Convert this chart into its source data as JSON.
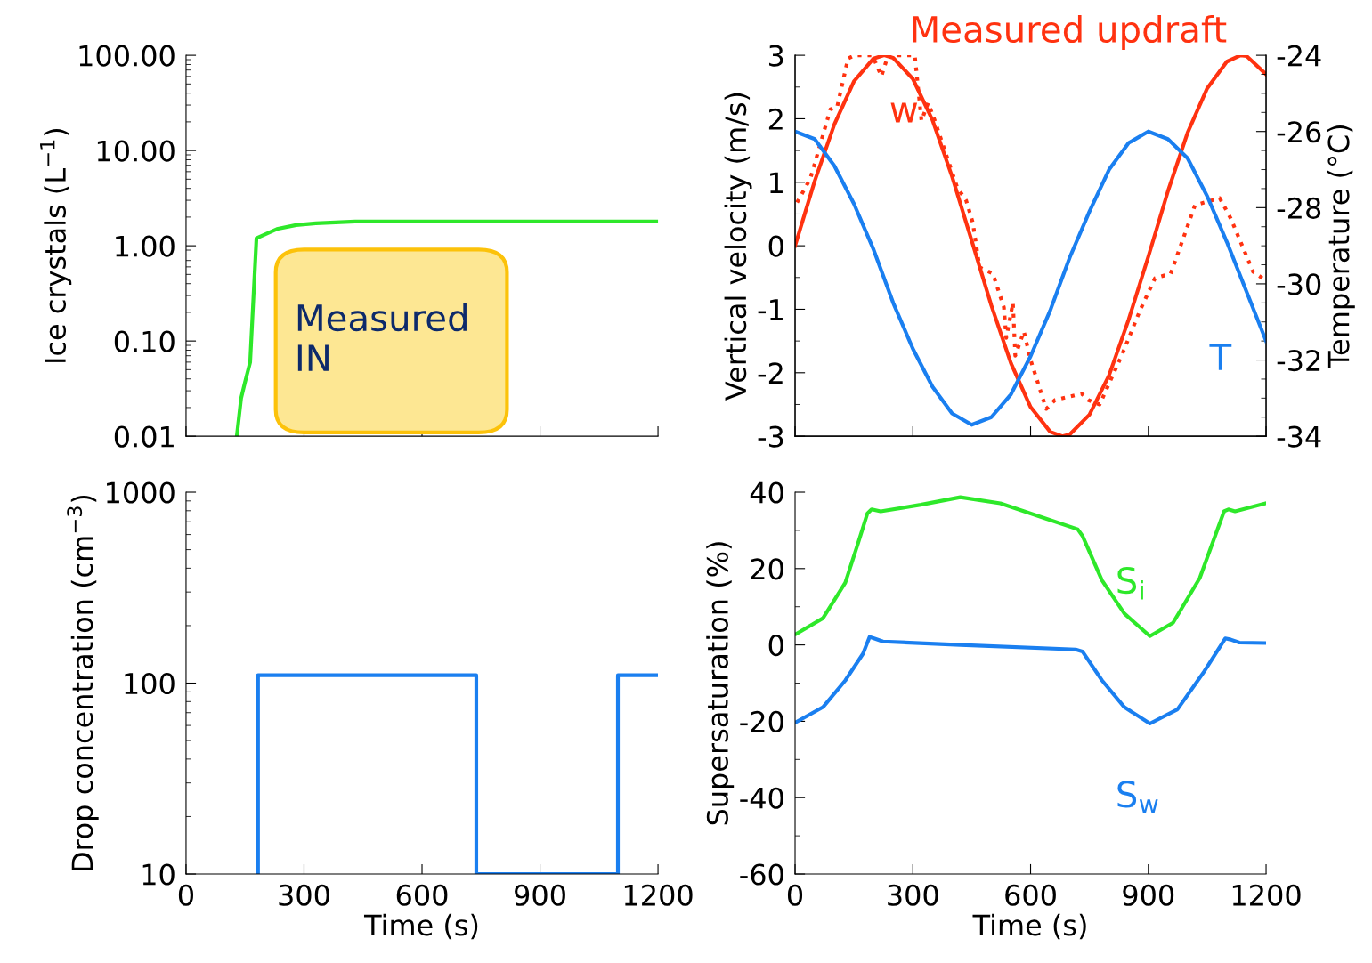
{
  "chart_data": [
    {
      "type": "line",
      "ylabel": "Ice crystals (L$^{−1}$)",
      "log": "y",
      "xlim": [
        0,
        1200
      ],
      "xticks": [
        0,
        300,
        600,
        900,
        1200
      ],
      "ylim": [
        0.01,
        100
      ],
      "yticks": [
        {
          "value": 0.01,
          "label": "0.01"
        },
        {
          "value": 0.1,
          "label": "0.10"
        },
        {
          "value": 1,
          "label": "1.00"
        },
        {
          "value": 10,
          "label": "10.00"
        },
        {
          "value": 100,
          "label": "100.00"
        }
      ],
      "tick_labels": "y",
      "annotations": [
        "Measured\nIN"
      ],
      "series": [
        {
          "color": "#2ee82a",
          "x": [
            129,
            140,
            150,
            163,
            179,
            231,
            280,
            330,
            430,
            1200
          ],
          "values": [
            0.01,
            0.025,
            0.037,
            0.06,
            1.2,
            1.5,
            1.65,
            1.72,
            1.8,
            1.8
          ]
        }
      ]
    },
    {
      "type": "line",
      "ylabel": "Vertical velocity (m/s)",
      "y2label": "Temperature (°C)",
      "xlim": [
        0,
        1200
      ],
      "xticks": [
        0,
        300,
        600,
        900,
        1200
      ],
      "ylim": [
        -3,
        3
      ],
      "yticks": [
        -3,
        -2,
        -1,
        0,
        1,
        2,
        3
      ],
      "y2lim": [
        -34,
        -24
      ],
      "y2ticks": [
        -34,
        -32,
        -30,
        -28,
        -26,
        -24
      ],
      "tick_labels": "y",
      "series": [
        {
          "name": "w",
          "color": "#ff3210",
          "x": [
            0,
            50,
            100,
            150,
            200,
            227,
            250,
            300,
            350,
            400,
            450,
            500,
            550,
            600,
            650,
            681,
            700,
            750,
            800,
            850,
            900,
            950,
            1000,
            1050,
            1100,
            1135,
            1150,
            1200
          ],
          "values": [
            0,
            1.02,
            1.91,
            2.59,
            2.95,
            3.0,
            2.96,
            2.63,
            1.98,
            1.09,
            0.08,
            -0.94,
            -1.85,
            -2.54,
            -2.93,
            -3.0,
            -2.97,
            -2.66,
            -2.04,
            -1.16,
            -0.17,
            0.86,
            1.78,
            2.48,
            2.9,
            3.0,
            2.99,
            2.7
          ]
        },
        {
          "name": "Measured updraft",
          "color": "#ff3210",
          "line_style": "dotted",
          "x": [
            5,
            39,
            90,
            107,
            135,
            152,
            197,
            220,
            237,
            305,
            322,
            339,
            356,
            413,
            436,
            453,
            470,
            504,
            532,
            538,
            555,
            561,
            583,
            600,
            640,
            662,
            730,
            747,
            776,
            832,
            878,
            917,
            957,
            1019,
            1082,
            1110,
            1167,
            1200
          ],
          "values": [
            0.68,
            1.06,
            2.15,
            2.18,
            2.95,
            3.0,
            3.0,
            2.67,
            3.0,
            3.0,
            1.97,
            2.25,
            1.97,
            0.92,
            0.71,
            0.36,
            -0.34,
            -0.44,
            -0.97,
            -1.45,
            -0.9,
            -1.73,
            -1.35,
            -1.8,
            -2.57,
            -2.43,
            -2.33,
            -2.43,
            -2.5,
            -1.73,
            -1.03,
            -0.51,
            -0.44,
            0.64,
            0.75,
            0.43,
            -0.41,
            -0.55
          ]
        },
        {
          "name": "T",
          "color": "#1a7ff0",
          "axis": "y2",
          "x": [
            0,
            50,
            100,
            150,
            200,
            250,
            300,
            350,
            400,
            450,
            500,
            550,
            600,
            650,
            700,
            750,
            800,
            850,
            900,
            950,
            1000,
            1050,
            1100,
            1150,
            1200
          ],
          "values": [
            -26.0,
            -26.2,
            -26.9,
            -27.9,
            -29.1,
            -30.5,
            -31.7,
            -32.7,
            -33.4,
            -33.7,
            -33.5,
            -32.9,
            -31.9,
            -30.7,
            -29.3,
            -28.1,
            -27.0,
            -26.3,
            -26.0,
            -26.2,
            -26.7,
            -27.7,
            -28.9,
            -30.2,
            -31.5
          ]
        }
      ]
    },
    {
      "type": "line",
      "xlabel": "Time (s)",
      "ylabel": "Drop concentration (cm$^{−3}$)",
      "log": "y",
      "xlim": [
        0,
        1200
      ],
      "xticks": [
        0,
        300,
        600,
        900,
        1200
      ],
      "ylim": [
        10,
        1000
      ],
      "yticks": [
        10,
        100,
        1000
      ],
      "series": [
        {
          "color": "#1a7ff0",
          "x": [
            183,
            183,
            738,
            738,
            1098,
            1098,
            1200
          ],
          "values": [
            10,
            110,
            110,
            10,
            10,
            110,
            110
          ]
        }
      ]
    },
    {
      "type": "line",
      "xlabel": "Time (s)",
      "ylabel": "Supersaturation (%)",
      "xlim": [
        0,
        1200
      ],
      "xticks": [
        0,
        300,
        600,
        900,
        1200
      ],
      "ylim": [
        -60,
        40
      ],
      "yticks": [
        -60,
        -40,
        -20,
        0,
        20,
        40
      ],
      "series": [
        {
          "name": "S$_{i}$",
          "color": "#2ee82a",
          "x": [
            3,
            71,
            128,
            161,
            184,
            195,
            218,
            320,
            421,
            523,
            636,
            720,
            732,
            782,
            839,
            904,
            963,
            1031,
            1093,
            1104,
            1121,
            1200
          ],
          "values": [
            2.9,
            7.0,
            16.3,
            26.8,
            34.4,
            35.5,
            35.0,
            36.7,
            38.7,
            37.1,
            33.2,
            30.3,
            28.6,
            16.9,
            8.2,
            2.3,
            5.8,
            17.5,
            35.0,
            35.5,
            35.0,
            37.1
          ]
        },
        {
          "name": "S$_{w}$",
          "color": "#1a7ff0",
          "x": [
            3,
            71,
            128,
            173,
            190,
            201,
            224,
            421,
            715,
            732,
            782,
            839,
            904,
            974,
            1042,
            1096,
            1110,
            1132,
            1200
          ],
          "values": [
            -20.2,
            -16.3,
            -9.3,
            -2.3,
            2.1,
            1.7,
            0.9,
            0.0,
            -1.2,
            -1.7,
            -9.3,
            -16.3,
            -20.6,
            -16.9,
            -7.0,
            1.7,
            1.4,
            0.6,
            0.5
          ]
        }
      ]
    }
  ]
}
